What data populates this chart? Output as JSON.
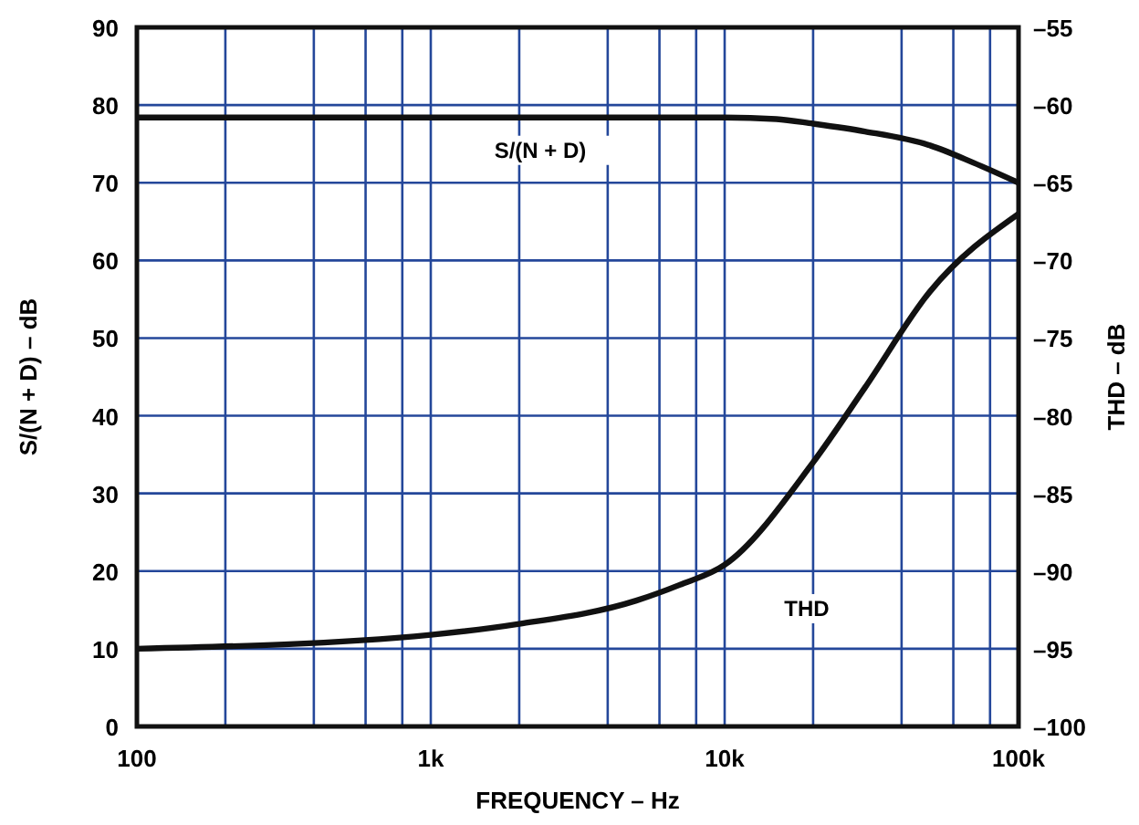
{
  "chart_data": {
    "type": "line",
    "xlabel": "FREQUENCY – Hz",
    "ylabel": "S/(N + D) – dB",
    "y2label": "THD – dB",
    "log": "x",
    "grid": true,
    "xlim": [
      100,
      100000
    ],
    "xticks": [
      100,
      {
        "value": 200,
        "label": null
      },
      {
        "value": 400,
        "label": null
      },
      {
        "value": 600,
        "label": null
      },
      {
        "value": 800,
        "label": null
      },
      {
        "value": 1000,
        "label": "1k"
      },
      {
        "value": 2000,
        "label": null
      },
      {
        "value": 4000,
        "label": null
      },
      {
        "value": 6000,
        "label": null
      },
      {
        "value": 8000,
        "label": null
      },
      {
        "value": 10000,
        "label": "10k"
      },
      {
        "value": 20000,
        "label": null
      },
      {
        "value": 40000,
        "label": null
      },
      {
        "value": 60000,
        "label": null
      },
      {
        "value": 80000,
        "label": null
      },
      {
        "value": 100000,
        "label": "100k"
      }
    ],
    "ylim": [
      0,
      90
    ],
    "yticks": [
      0,
      10,
      20,
      30,
      40,
      50,
      60,
      70,
      80,
      90
    ],
    "y2lim": [
      -100,
      -55
    ],
    "y2ticks": [
      {
        "value": -100,
        "label": "–100"
      },
      {
        "value": -95,
        "label": "–95"
      },
      {
        "value": -90,
        "label": "–90"
      },
      {
        "value": -85,
        "label": "–85"
      },
      {
        "value": -80,
        "label": "–80"
      },
      {
        "value": -75,
        "label": "–75"
      },
      {
        "value": -70,
        "label": "–70"
      },
      {
        "value": -65,
        "label": "–65"
      },
      {
        "value": -60,
        "label": "–60"
      },
      {
        "value": -55,
        "label": "–55"
      }
    ],
    "series": [
      {
        "name": "S/(N + D)",
        "color": "#111111",
        "x": [
          100,
          1000,
          10000,
          15000,
          20000,
          30000,
          50000,
          70000,
          100000
        ],
        "values": [
          78.4,
          78.4,
          78.4,
          78.2,
          77.6,
          76.6,
          74.8,
          72.6,
          70
        ]
      },
      {
        "name": "THD",
        "color": "#111111",
        "axis": "y2",
        "x": [
          100,
          1000,
          2000,
          5000,
          7000,
          10000,
          20000,
          30000,
          50000,
          100000
        ],
        "values": [
          -95,
          -94.1,
          -93.4,
          -91.9,
          -90.9,
          -89.6,
          -83,
          -78.2,
          -72,
          -67
        ]
      }
    ]
  }
}
